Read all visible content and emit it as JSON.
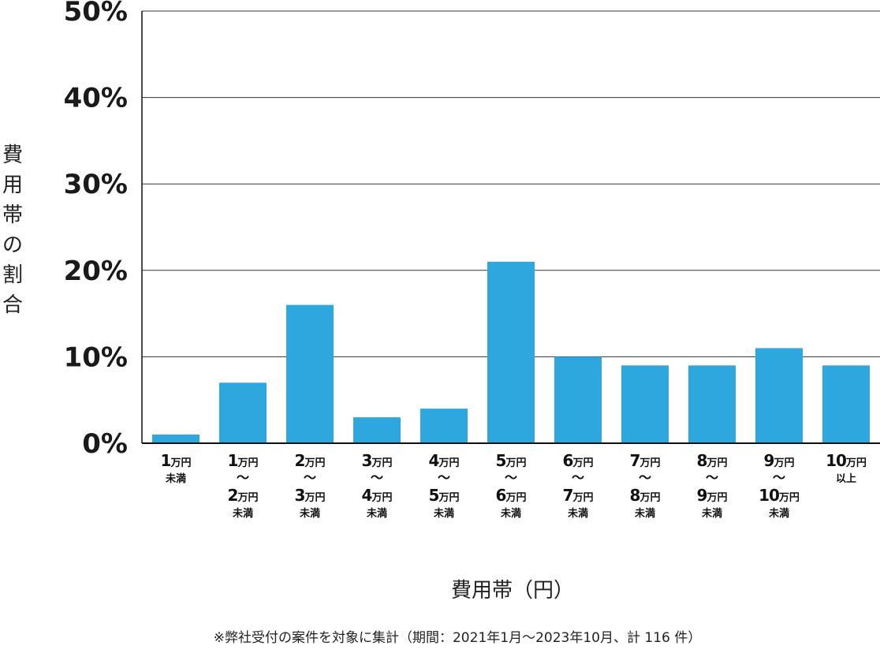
{
  "chart_data": {
    "type": "bar",
    "categories": [
      {
        "from": "1",
        "from_unit": "万円",
        "to": "",
        "to_unit": "",
        "suffix": "未満"
      },
      {
        "from": "1",
        "from_unit": "万円",
        "to": "2",
        "to_unit": "万円",
        "suffix": "未満"
      },
      {
        "from": "2",
        "from_unit": "万円",
        "to": "3",
        "to_unit": "万円",
        "suffix": "未満"
      },
      {
        "from": "3",
        "from_unit": "万円",
        "to": "4",
        "to_unit": "万円",
        "suffix": "未満"
      },
      {
        "from": "4",
        "from_unit": "万円",
        "to": "5",
        "to_unit": "万円",
        "suffix": "未満"
      },
      {
        "from": "5",
        "from_unit": "万円",
        "to": "6",
        "to_unit": "万円",
        "suffix": "未満"
      },
      {
        "from": "6",
        "from_unit": "万円",
        "to": "7",
        "to_unit": "万円",
        "suffix": "未満"
      },
      {
        "from": "7",
        "from_unit": "万円",
        "to": "8",
        "to_unit": "万円",
        "suffix": "未満"
      },
      {
        "from": "8",
        "from_unit": "万円",
        "to": "9",
        "to_unit": "万円",
        "suffix": "未満"
      },
      {
        "from": "9",
        "from_unit": "万円",
        "to": "10",
        "to_unit": "万円",
        "suffix": "未満"
      },
      {
        "from": "10",
        "from_unit": "万円",
        "to": "",
        "to_unit": "",
        "suffix": "以上"
      }
    ],
    "range_mark": "〜",
    "values": [
      1,
      7,
      16,
      3,
      4,
      21,
      10,
      9,
      9,
      11,
      9
    ],
    "ylim": [
      0,
      50
    ],
    "yticks": [
      "0%",
      "10%",
      "20%",
      "30%",
      "40%",
      "50%"
    ],
    "ytick_values": [
      0,
      10,
      20,
      30,
      40,
      50
    ],
    "ylabel": "費用帯の割合",
    "xlabel": "費用帯（円）",
    "grid": true,
    "bar_color": "#2ea7df",
    "grid_color": "#333333"
  },
  "footnote": "※弊社受付の案件を対象に集計（期間：2021年1月～2023年10月、計 116 件）"
}
